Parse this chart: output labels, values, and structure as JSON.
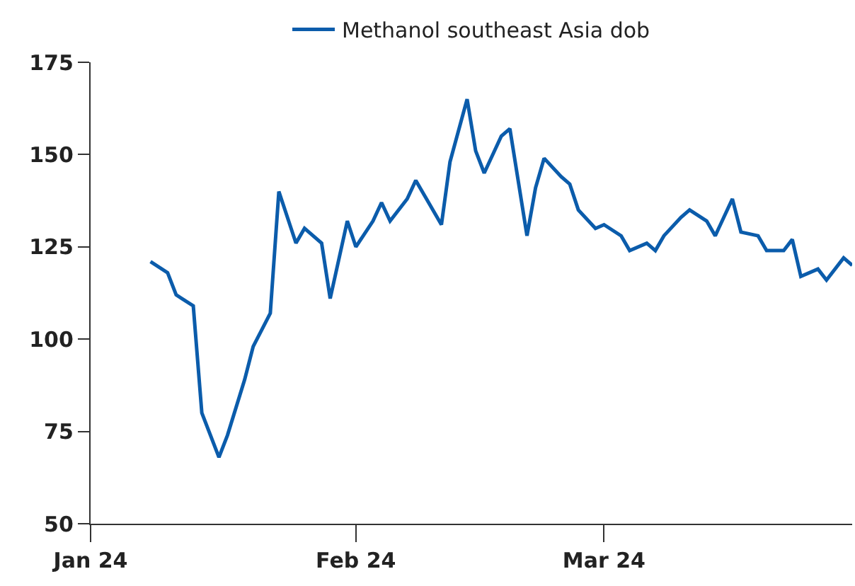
{
  "chart_data": {
    "type": "line",
    "x": [
      "2024-01-08",
      "2024-01-10",
      "2024-01-11",
      "2024-01-13",
      "2024-01-14",
      "2024-01-16",
      "2024-01-17",
      "2024-01-19",
      "2024-01-20",
      "2024-01-22",
      "2024-01-23",
      "2024-01-25",
      "2024-01-26",
      "2024-01-28",
      "2024-01-29",
      "2024-01-31",
      "2024-02-01",
      "2024-02-03",
      "2024-02-04",
      "2024-02-05",
      "2024-02-07",
      "2024-02-08",
      "2024-02-09",
      "2024-02-11",
      "2024-02-12",
      "2024-02-14",
      "2024-02-15",
      "2024-02-16",
      "2024-02-18",
      "2024-02-19",
      "2024-02-21",
      "2024-02-22",
      "2024-02-23",
      "2024-02-25",
      "2024-02-26",
      "2024-02-27",
      "2024-02-29",
      "2024-03-01",
      "2024-03-03",
      "2024-03-04",
      "2024-03-06",
      "2024-03-07",
      "2024-03-08",
      "2024-03-10",
      "2024-03-11",
      "2024-03-13",
      "2024-03-14",
      "2024-03-16",
      "2024-03-17",
      "2024-03-19",
      "2024-03-20",
      "2024-03-22",
      "2024-03-23",
      "2024-03-24",
      "2024-03-26",
      "2024-03-27",
      "2024-03-29",
      "2024-03-30"
    ],
    "series": [
      {
        "name": "Methanol southeast Asia dob",
        "color": "#0b5cab",
        "values": [
          121,
          118,
          112,
          109,
          80,
          68,
          74,
          89,
          98,
          107,
          140,
          126,
          130,
          126,
          111,
          132,
          125,
          132,
          137,
          132,
          138,
          143,
          139,
          131,
          148,
          165,
          151,
          145,
          155,
          157,
          128,
          141,
          149,
          144,
          142,
          135,
          130,
          131,
          128,
          124,
          126,
          124,
          128,
          133,
          135,
          132,
          128,
          138,
          129,
          128,
          124,
          124,
          127,
          117,
          119,
          116,
          122,
          120
        ]
      }
    ],
    "xlim": [
      "2024-01-01",
      "2024-03-30"
    ],
    "xticks": [
      {
        "value": "2024-01-01",
        "label": "Jan 24"
      },
      {
        "value": "2024-02-01",
        "label": "Feb 24"
      },
      {
        "value": "2024-03-01",
        "label": "Mar 24"
      }
    ],
    "ylim": [
      50,
      175
    ],
    "yticks": [
      50,
      75,
      100,
      125,
      150,
      175
    ],
    "legend": "top",
    "marker": "none",
    "line_style": "solid"
  }
}
